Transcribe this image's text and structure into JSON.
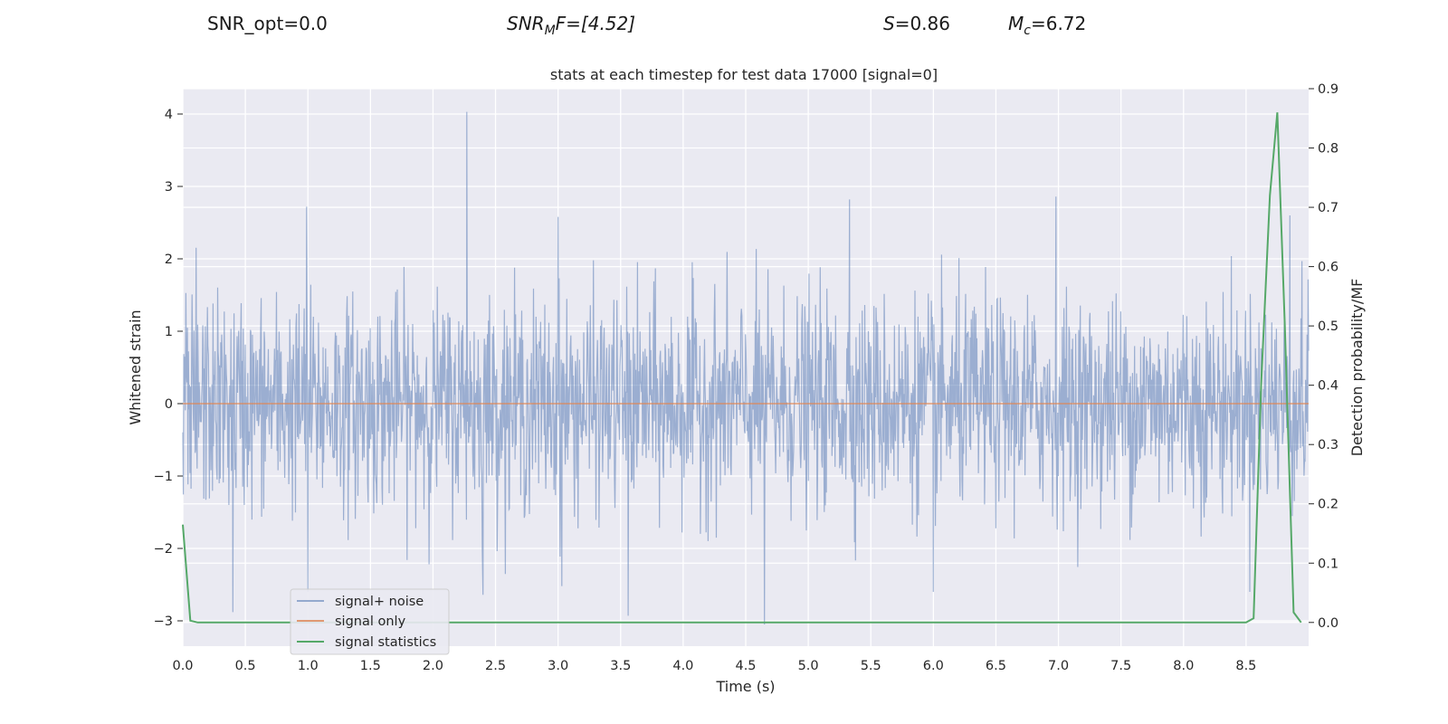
{
  "header": {
    "snr_opt": "SNR_opt=0.0",
    "snr_mf": {
      "main": "SNR",
      "sub": "M",
      "rest": "F=[4.52]"
    },
    "s_stat": {
      "var": "S",
      "rest": "=0.86"
    },
    "mc": {
      "var": "M",
      "sub": "c",
      "rest": "=6.72"
    }
  },
  "chart_data": {
    "type": "line",
    "title": "stats at each timestep for test data 17000 [signal=0]",
    "xlabel": "Time (s)",
    "ylabel_left": "Whitened strain",
    "ylabel_right": "Detection probability/MF",
    "xlim": [
      0.0,
      9.0
    ],
    "ylim_left": [
      -3.35,
      4.35
    ],
    "ylim_right": [
      -0.04,
      0.9
    ],
    "xticks": [
      "0.0",
      "0.5",
      "1.0",
      "1.5",
      "2.0",
      "2.5",
      "3.0",
      "3.5",
      "4.0",
      "4.5",
      "5.0",
      "5.5",
      "6.0",
      "6.5",
      "7.0",
      "7.5",
      "8.0",
      "8.5"
    ],
    "yticks_left": [
      "−3",
      "−2",
      "−1",
      "0",
      "1",
      "2",
      "3",
      "4"
    ],
    "yticks_right": [
      "0.0",
      "0.1",
      "0.2",
      "0.3",
      "0.4",
      "0.5",
      "0.6",
      "0.7",
      "0.8",
      "0.9"
    ],
    "grid": true,
    "legend_position": "lower-left",
    "series": [
      {
        "name": "signal+ noise",
        "axis": "left",
        "color": "#4c72b0",
        "alpha": 0.5,
        "description_range": [
          -3.05,
          4.03
        ],
        "peaks": [
          {
            "x": 0.99,
            "y": 2.72
          },
          {
            "x": 2.27,
            "y": 4.03
          },
          {
            "x": 2.4,
            "y": 2.6
          },
          {
            "x": 3.0,
            "y": 2.58
          },
          {
            "x": 5.33,
            "y": 2.82
          },
          {
            "x": 6.98,
            "y": 2.86
          },
          {
            "x": 8.85,
            "y": 2.6
          },
          {
            "x": 4.65,
            "y": -3.05
          },
          {
            "x": 3.56,
            "y": -2.93
          },
          {
            "x": 0.4,
            "y": -2.88
          },
          {
            "x": 1.0,
            "y": -2.6
          },
          {
            "x": 2.4,
            "y": -2.64
          },
          {
            "x": 8.53,
            "y": -2.6
          },
          {
            "x": 3.03,
            "y": -2.52
          },
          {
            "x": 6.0,
            "y": -2.6
          }
        ]
      },
      {
        "name": "signal only",
        "axis": "left",
        "color": "#dd8452",
        "x": [
          0.0,
          9.0
        ],
        "y": [
          0.0,
          0.0
        ]
      },
      {
        "name": "signal statistics",
        "axis": "right",
        "color": "#55a868",
        "x": [
          0.0,
          0.06,
          0.12,
          0.5,
          1.0,
          2.0,
          3.0,
          4.0,
          5.0,
          6.0,
          7.0,
          8.0,
          8.5,
          8.56,
          8.62,
          8.69,
          8.75,
          8.81,
          8.88,
          8.94
        ],
        "y": [
          0.165,
          0.003,
          0.0,
          0.0,
          0.0,
          0.0,
          0.0,
          0.0,
          0.0,
          0.0,
          0.0,
          0.0,
          0.0,
          0.007,
          0.4,
          0.72,
          0.86,
          0.5,
          0.017,
          0.0
        ]
      }
    ]
  }
}
